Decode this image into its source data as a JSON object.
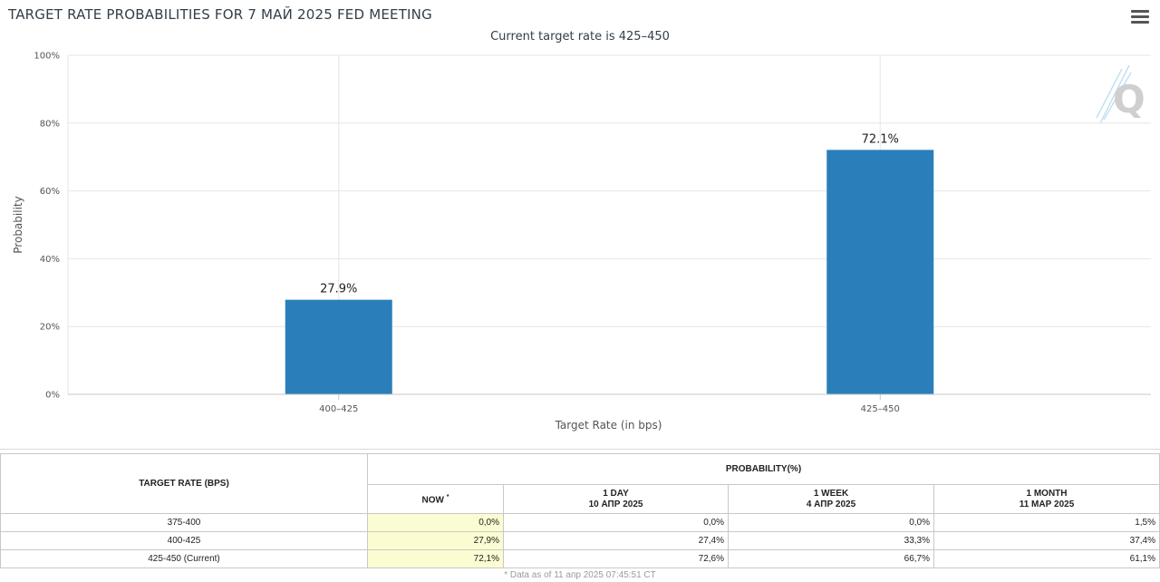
{
  "header": {
    "title": "TARGET RATE PROBABILITIES FOR 7 МАЙ 2025 FED MEETING",
    "subtitle": "Current target rate is 425–450"
  },
  "chart_data": {
    "type": "bar",
    "categories": [
      "400–425",
      "425–450"
    ],
    "values": [
      27.9,
      72.1
    ],
    "data_labels": [
      "27.9%",
      "72.1%"
    ],
    "title": "TARGET RATE PROBABILITIES FOR 7 МАЙ 2025 FED MEETING",
    "subtitle": "Current target rate is 425–450",
    "xlabel": "Target Rate (in bps)",
    "ylabel": "Probability",
    "ylim": [
      0,
      100
    ],
    "yticks": [
      "0%",
      "20%",
      "40%",
      "60%",
      "80%",
      "100%"
    ],
    "ytick_values": [
      0,
      20,
      40,
      60,
      80,
      100
    ],
    "grid": true,
    "bar_color": "#2a7fba"
  },
  "table": {
    "rate_header": "TARGET RATE (BPS)",
    "prob_header": "PROBABILITY(%)",
    "columns": [
      {
        "line1": "NOW",
        "marker": "*",
        "line2": ""
      },
      {
        "line1": "1 DAY",
        "line2": "10 АПР 2025"
      },
      {
        "line1": "1 WEEK",
        "line2": "4 АПР 2025"
      },
      {
        "line1": "1 MONTH",
        "line2": "11 МАР 2025"
      }
    ],
    "rows": [
      {
        "rate": "375-400",
        "values": [
          "0,0%",
          "0,0%",
          "0,0%",
          "1,5%"
        ]
      },
      {
        "rate": "400-425",
        "values": [
          "27,9%",
          "27,4%",
          "33,3%",
          "37,4%"
        ]
      },
      {
        "rate": "425-450 (Current)",
        "values": [
          "72,1%",
          "72,6%",
          "66,7%",
          "61,1%"
        ]
      }
    ],
    "footnote": "* Data as of 11 апр 2025 07:45:51 CT",
    "now_highlight_color": "#fcfcd2"
  }
}
